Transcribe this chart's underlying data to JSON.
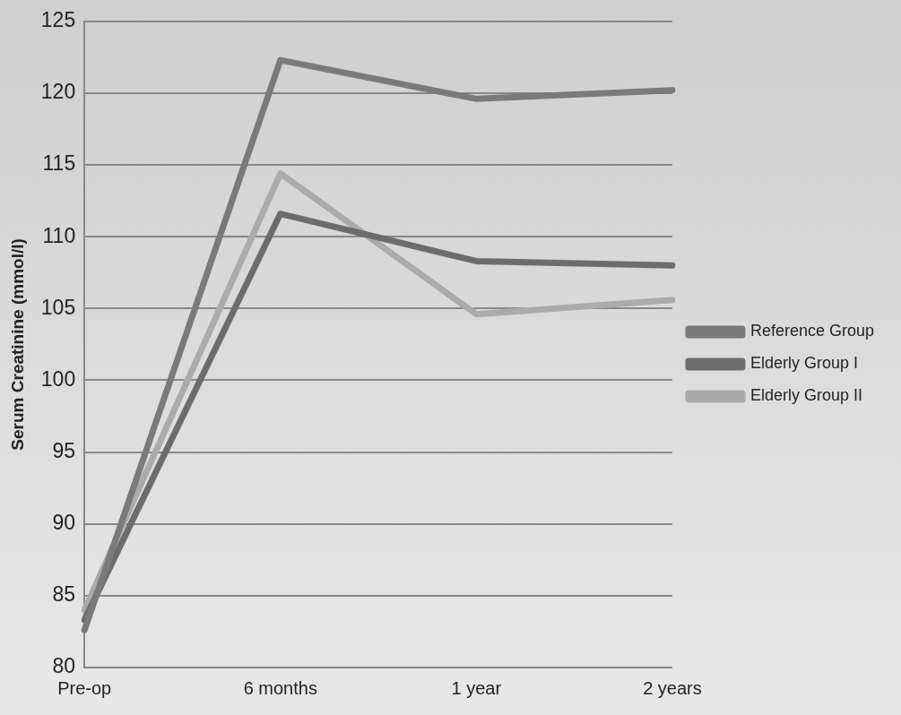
{
  "chart_data": {
    "type": "line",
    "ylabel": "Serum Creatinine (mmol/l)",
    "categories": [
      "Pre-op",
      "6 months",
      "1 year",
      "2 years"
    ],
    "series": [
      {
        "name": "Reference Group",
        "color": "#7a7a7a",
        "values": [
          82.6,
          122.3,
          119.6,
          120.2
        ]
      },
      {
        "name": "Elderly Group I",
        "color": "#6c6c6c",
        "values": [
          83.3,
          111.6,
          108.3,
          108.0
        ]
      },
      {
        "name": "Elderly Group II",
        "color": "#ababab",
        "values": [
          84.0,
          114.4,
          104.6,
          105.6
        ]
      }
    ],
    "ylim": [
      80,
      125
    ],
    "yticks": [
      80,
      85,
      90,
      95,
      100,
      105,
      110,
      115,
      120,
      125
    ],
    "grid": "y",
    "legend": "right",
    "marker": "none",
    "line_style": "solid"
  }
}
